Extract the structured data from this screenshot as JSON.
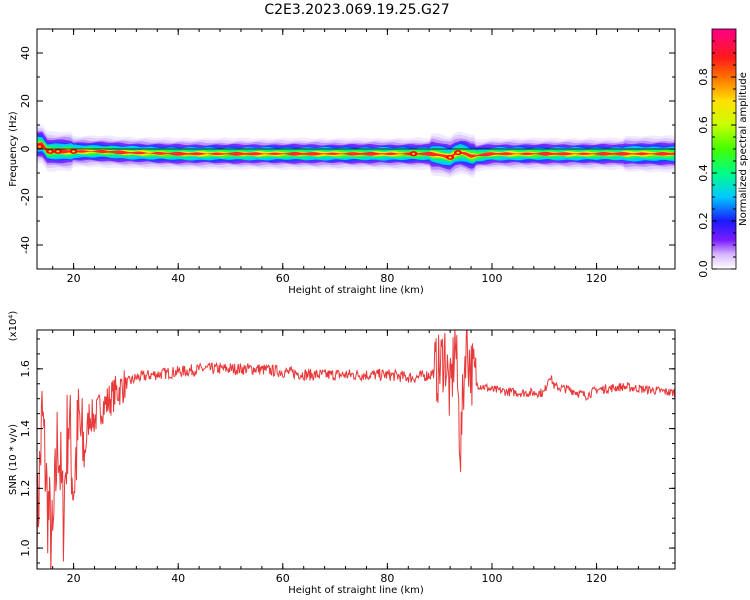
{
  "title": "C2E3.2023.069.19.25.G27",
  "chart_data": [
    {
      "type": "heatmap",
      "xlabel": "Height of straight line (km)",
      "ylabel": "Frequency (Hz)",
      "xlim": [
        13,
        135
      ],
      "ylim": [
        -50,
        50
      ],
      "xticks": [
        20,
        40,
        60,
        80,
        100,
        120
      ],
      "yticks": [
        -40,
        -20,
        0,
        20,
        40
      ],
      "colorbar": {
        "label": "Normalized spectral amplitude",
        "range": [
          0,
          1
        ],
        "ticks": [
          0.0,
          0.2,
          0.4,
          0.6,
          0.8
        ]
      },
      "ridge": {
        "x": [
          13,
          14,
          15,
          16,
          18,
          20,
          25,
          30,
          40,
          50,
          60,
          70,
          80,
          88,
          90,
          91,
          92,
          93,
          94,
          95,
          96,
          100,
          110,
          120,
          130,
          135
        ],
        "frequency": [
          2,
          2,
          -1,
          -1,
          -1,
          -1,
          -1,
          -1.5,
          -2,
          -2,
          -2,
          -2,
          -2,
          -2,
          -2.5,
          -3,
          -3.5,
          -2,
          -1.5,
          -2,
          -3,
          -2,
          -2,
          -2,
          -2,
          -2
        ]
      }
    },
    {
      "type": "line",
      "xlabel": "Height of straight line (km)",
      "ylabel": "SNR (10 * v/v)",
      "yunit": "(x10⁴)",
      "xlim": [
        13,
        135
      ],
      "ylim": [
        0.93,
        1.73
      ],
      "xticks": [
        20,
        40,
        60,
        80,
        100,
        120
      ],
      "yticks": [
        1.0,
        1.2,
        1.4,
        1.6
      ],
      "series": [
        {
          "color": "#e8393a",
          "x": [
            13,
            14,
            15,
            16,
            17,
            18,
            19,
            20,
            21,
            22,
            23,
            24,
            25,
            26,
            27,
            28,
            30,
            32,
            35,
            40,
            45,
            50,
            55,
            60,
            65,
            70,
            75,
            80,
            85,
            88,
            90,
            91,
            92,
            93,
            94,
            95,
            96,
            97,
            100,
            105,
            110,
            111,
            112,
            115,
            118,
            120,
            125,
            130,
            135
          ],
          "values": [
            1.05,
            1.45,
            1.15,
            0.99,
            1.4,
            1.1,
            1.45,
            1.2,
            1.42,
            1.3,
            1.45,
            1.43,
            1.47,
            1.48,
            1.5,
            1.52,
            1.55,
            1.57,
            1.58,
            1.59,
            1.6,
            1.6,
            1.6,
            1.59,
            1.58,
            1.58,
            1.58,
            1.58,
            1.57,
            1.58,
            1.6,
            1.66,
            1.5,
            1.7,
            1.33,
            1.7,
            1.6,
            1.55,
            1.53,
            1.52,
            1.52,
            1.58,
            1.54,
            1.53,
            1.51,
            1.53,
            1.54,
            1.53,
            1.52
          ]
        }
      ]
    }
  ]
}
